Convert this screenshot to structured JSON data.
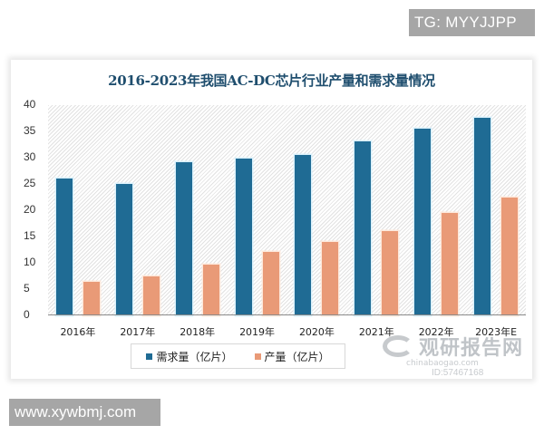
{
  "badges": {
    "top_right": "TG: MYYJJPP",
    "bottom_left": "www.xywbmj.com"
  },
  "watermark": {
    "title": "观研报告网",
    "subtitle": "chinabaogao.com",
    "id": "ID:57467168"
  },
  "colors": {
    "demand": "#1f6b94",
    "output": "#e99a77",
    "title": "#1f4e6e"
  },
  "chart_data": {
    "type": "bar",
    "title": "2016-2023年我国AC-DC芯片行业产量和需求量情况",
    "xlabel": "",
    "ylabel": "",
    "categories": [
      "2016年",
      "2017年",
      "2018年",
      "2019年",
      "2020年",
      "2021年",
      "2022年",
      "2023年E"
    ],
    "series": [
      {
        "name": "需求量（亿片）",
        "values": [
          26.0,
          25.0,
          29.1,
          29.9,
          30.5,
          33.1,
          35.5,
          37.6
        ]
      },
      {
        "name": "产量（亿片）",
        "values": [
          6.4,
          7.5,
          9.7,
          12.0,
          14.0,
          16.0,
          19.5,
          22.4
        ]
      }
    ],
    "ylim": [
      0,
      40
    ],
    "yticks": [
      "40",
      "35",
      "30",
      "25",
      "20",
      "15",
      "10",
      "5",
      "0"
    ],
    "grid": false,
    "legend_position": "bottom"
  }
}
